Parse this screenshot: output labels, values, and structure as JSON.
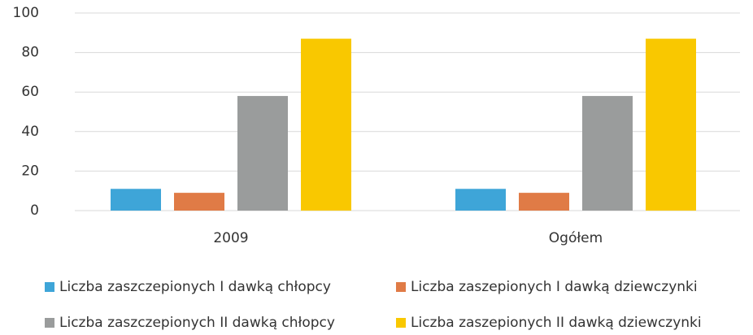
{
  "chart_data": {
    "type": "bar",
    "categories": [
      "2009",
      "Ogółem"
    ],
    "series": [
      {
        "name": "Liczba zaszczepionych I dawką chłopcy",
        "color": "#3ea5d8",
        "values": [
          11,
          11
        ]
      },
      {
        "name": "Liczba zaszepionych I dawką dziewczynki",
        "color": "#e07b46",
        "values": [
          9,
          9
        ]
      },
      {
        "name": "Liczba zaszczepionych II dawką chłopcy",
        "color": "#9a9c9c",
        "values": [
          58,
          58
        ]
      },
      {
        "name": "Liczba zaszepionych II dawką dziewczynki",
        "color": "#f9c800",
        "values": [
          87,
          87
        ]
      }
    ],
    "ylim": [
      0,
      100
    ],
    "yticks": [
      0,
      20,
      40,
      60,
      80,
      100
    ],
    "grid": true,
    "legend": "bottom"
  }
}
